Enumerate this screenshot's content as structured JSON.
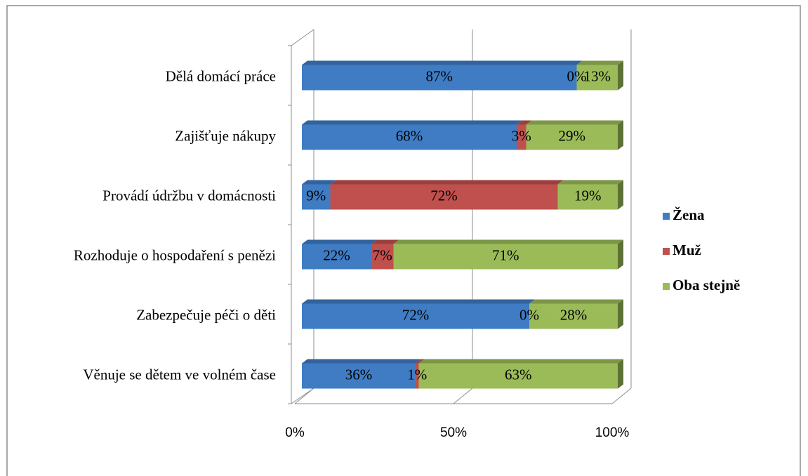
{
  "chart_data": {
    "type": "bar",
    "horizontal": true,
    "stacked": true,
    "categories": [
      "Dělá domácí práce",
      "Zajišťuje nákupy",
      "Provádí údržbu v domácnosti",
      "Rozhoduje o hospodaření s penězi",
      "Zabezpečuje péči o děti",
      "Věnuje se dětem ve volném čase"
    ],
    "series": [
      {
        "name": "Žena",
        "color": "#3f7cc4",
        "values": [
          87,
          68,
          9,
          22,
          72,
          36
        ],
        "value_labels": [
          "87%",
          "68%",
          "9%",
          "22%",
          "72%",
          "36%"
        ]
      },
      {
        "name": "Muž",
        "color": "#c0504d",
        "values": [
          0,
          3,
          72,
          7,
          0,
          1
        ],
        "value_labels": [
          "0%",
          "3%",
          "72%",
          "7%",
          "0%",
          "1%"
        ]
      },
      {
        "name": "Oba stejně",
        "color": "#9bbb59",
        "values": [
          13,
          29,
          19,
          71,
          28,
          63
        ],
        "value_labels": [
          "13%",
          "29%",
          "19%",
          "71%",
          "28%",
          "63%"
        ]
      }
    ],
    "xlim": [
      0,
      100
    ],
    "xticks": [
      {
        "value": 0,
        "label": "0%"
      },
      {
        "value": 50,
        "label": "50%"
      },
      {
        "value": 100,
        "label": "100%"
      }
    ],
    "grid": true,
    "legend": "right"
  }
}
